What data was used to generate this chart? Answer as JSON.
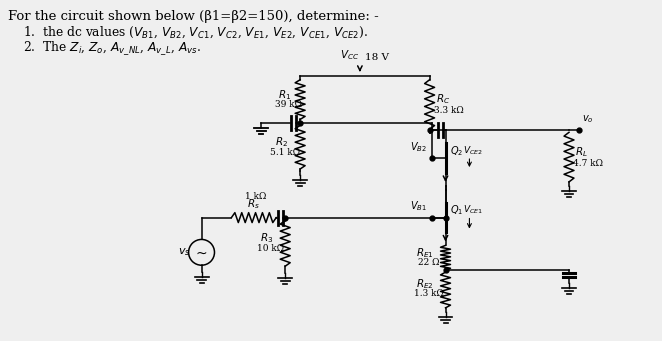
{
  "bg_color": "#efefef",
  "line_color": "#000000",
  "header1": "For the circuit shown below (β1=β2=150), determine: -",
  "header2": "1.  the dc values ($V_{B1}$, $V_{B2}$, $V_{C1}$, $V_{C2}$, $V_{E1}$, $V_{E2}$, $V_{CE1}$, $V_{CE2}$).",
  "header3": "2.  The $Z_i$, $Z_o$, $A_{v\\_NL}$, $A_{v\\_L}$, $A_{vs}$.",
  "VCC_label": "$V_{CC}$",
  "VCC_val": "18 V",
  "R1_label": "$R_1$",
  "R1_val": "39 kΩ",
  "R2_label": "$R_2$",
  "R2_val": "5.1 kΩ",
  "R3_label": "$R_3$",
  "R3_val": "10 kΩ",
  "Rc_label": "$R_C$",
  "Rc_val": "3.3 kΩ",
  "RL_label": "$R_L$",
  "RL_val": "4.7 kΩ",
  "RE1_label": "$R_{E1}$",
  "RE1_val": "22 Ω",
  "RE2_label": "$R_{E2}$",
  "RE2_val": "1.3 kΩ",
  "Rs_label": "$R_s$",
  "Rs_val": "1 kΩ",
  "Q1_label": "$Q_1$",
  "Q2_label": "$Q_2$",
  "VCE1_label": "$V_{CE1}$",
  "VCE2_label": "$V_{CE2}$",
  "VB1_label": "$V_{B1}$",
  "VB2_label": "$V_{B2}$",
  "vo_label": "$v_o$",
  "vs_label": "$v_s$"
}
